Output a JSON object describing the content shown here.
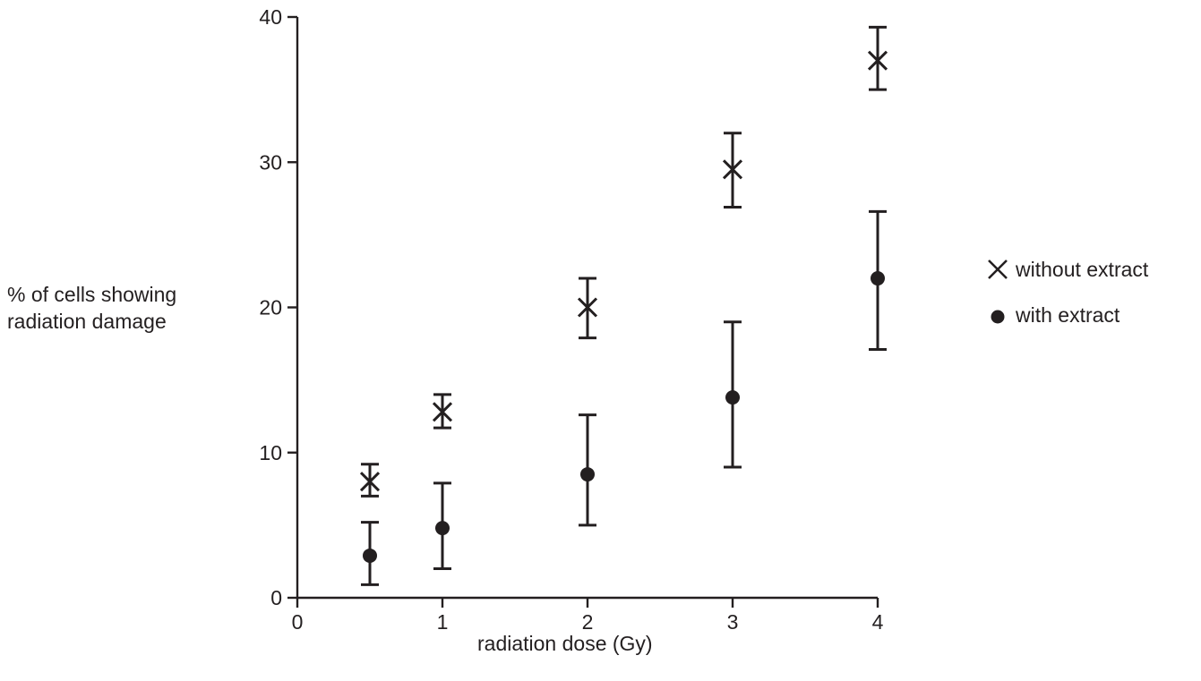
{
  "chart_data": {
    "type": "scatter",
    "xlabel": "radiation dose (Gy)",
    "ylabel_lines": [
      "% of cells showing",
      "radiation damage"
    ],
    "x_ticks": [
      "0",
      "1",
      "2",
      "3",
      "4"
    ],
    "y_ticks": [
      "0",
      "10",
      "20",
      "30",
      "40"
    ],
    "xlim": [
      0,
      4
    ],
    "ylim": [
      0,
      40
    ],
    "grid": false,
    "legend_position": "right",
    "series": [
      {
        "name": "without extract",
        "marker": "cross",
        "x": [
          0.5,
          1,
          2,
          3,
          4
        ],
        "y": [
          8,
          12.8,
          20,
          29.5,
          37
        ],
        "err_low": [
          7,
          11.7,
          17.9,
          26.9,
          35
        ],
        "err_high": [
          9.2,
          14,
          22,
          32,
          39.3
        ]
      },
      {
        "name": "with extract",
        "marker": "dot",
        "x": [
          0.5,
          1,
          2,
          3,
          4
        ],
        "y": [
          2.9,
          4.8,
          8.5,
          13.8,
          22
        ],
        "err_low": [
          0.9,
          2,
          5,
          9,
          17.1
        ],
        "err_high": [
          5.2,
          7.9,
          12.6,
          19,
          26.6
        ]
      }
    ],
    "colors": {
      "ink": "#231f20"
    }
  }
}
